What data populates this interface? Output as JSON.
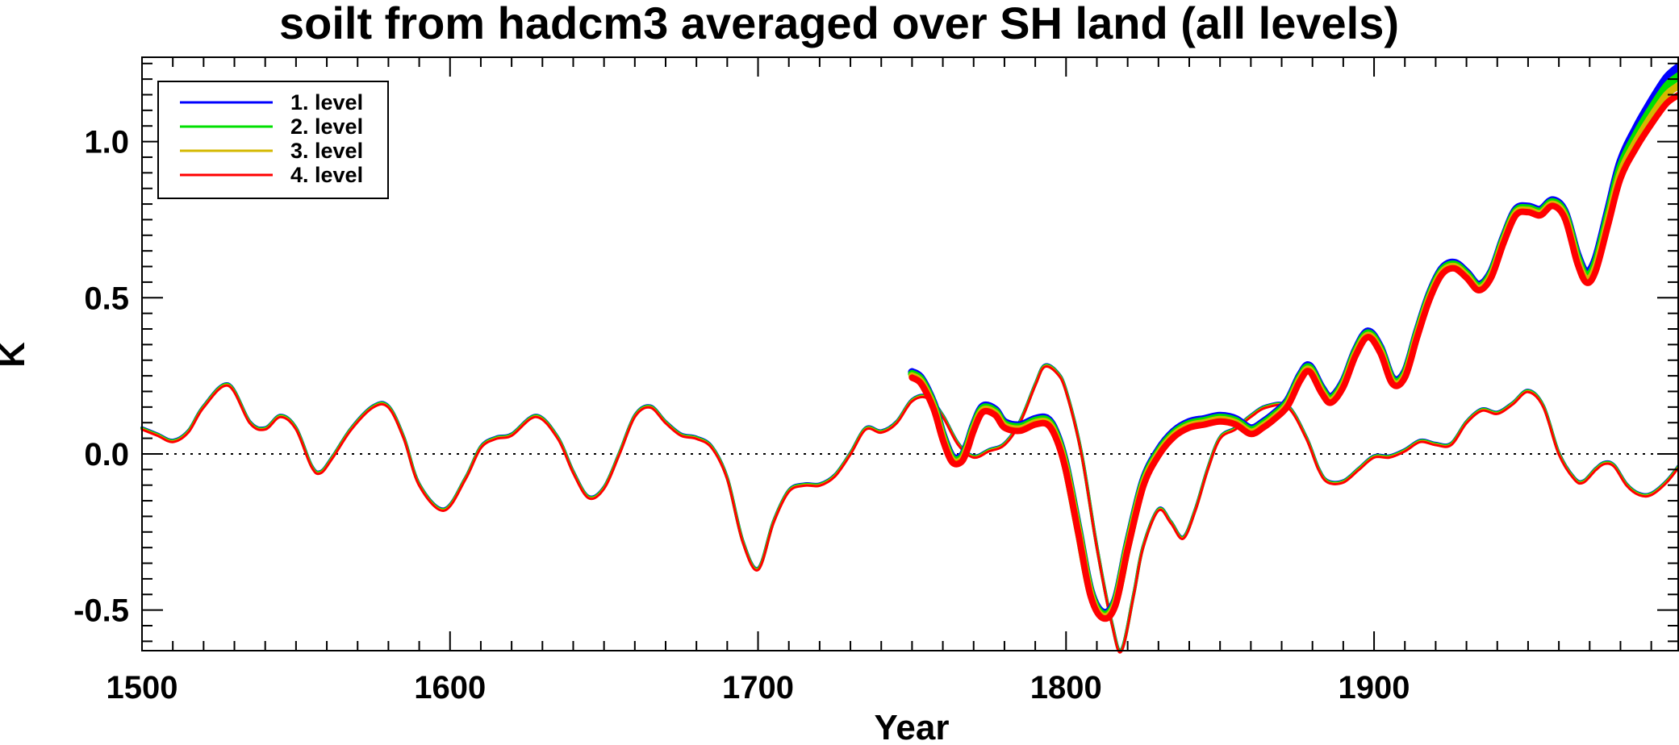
{
  "chart_data": {
    "type": "line",
    "title": "soilt from hadcm3 averaged over SH land (all levels)",
    "xlabel": "Year",
    "ylabel": "K",
    "xlim": [
      1500,
      1999
    ],
    "ylim": [
      -0.63,
      1.27
    ],
    "x_ticks": [
      1500,
      1600,
      1700,
      1800,
      1900
    ],
    "x_tick_labels": [
      "1500",
      "1600",
      "1700",
      "1800",
      "1900"
    ],
    "y_ticks": [
      -0.5,
      0.0,
      0.5,
      1.0
    ],
    "y_tick_labels": [
      "-0.5",
      "0.0",
      "0.5",
      "1.0"
    ],
    "zero_line": "dotted",
    "legend_position": "top-left",
    "series": [
      {
        "name": "1. level",
        "color": "#0000ff"
      },
      {
        "name": "2. level",
        "color": "#00e000"
      },
      {
        "name": "3. level",
        "color": "#d4b800"
      },
      {
        "name": "4. level",
        "color": "#ff0000"
      }
    ],
    "thin_curve": {
      "x": [
        1500,
        1505,
        1510,
        1515,
        1520,
        1528,
        1535,
        1540,
        1545,
        1550,
        1555,
        1558,
        1562,
        1568,
        1575,
        1580,
        1585,
        1590,
        1598,
        1605,
        1610,
        1615,
        1620,
        1628,
        1635,
        1640,
        1645,
        1650,
        1655,
        1660,
        1665,
        1670,
        1675,
        1680,
        1685,
        1690,
        1695,
        1700,
        1705,
        1710,
        1715,
        1720,
        1725,
        1730,
        1735,
        1740,
        1745,
        1750,
        1755,
        1760,
        1765,
        1770,
        1775,
        1780,
        1785,
        1790,
        1793,
        1797,
        1800,
        1805,
        1810,
        1815,
        1818,
        1822,
        1825,
        1830,
        1834,
        1838,
        1842,
        1846,
        1850,
        1855,
        1860,
        1865,
        1872,
        1878,
        1882,
        1885,
        1890,
        1895,
        1900,
        1905,
        1910,
        1915,
        1920,
        1925,
        1930,
        1935,
        1940,
        1945,
        1950,
        1955,
        1960,
        1965,
        1968,
        1972,
        1975,
        1978,
        1982,
        1986,
        1990,
        1995,
        1999
      ],
      "y": [
        0.08,
        0.06,
        0.04,
        0.07,
        0.15,
        0.22,
        0.1,
        0.08,
        0.12,
        0.08,
        -0.04,
        -0.06,
        -0.01,
        0.08,
        0.15,
        0.15,
        0.05,
        -0.1,
        -0.18,
        -0.08,
        0.02,
        0.05,
        0.06,
        0.12,
        0.05,
        -0.06,
        -0.14,
        -0.11,
        0.0,
        0.12,
        0.15,
        0.1,
        0.06,
        0.05,
        0.02,
        -0.08,
        -0.28,
        -0.37,
        -0.22,
        -0.12,
        -0.1,
        -0.1,
        -0.07,
        0.0,
        0.08,
        0.07,
        0.1,
        0.17,
        0.18,
        0.12,
        0.03,
        -0.01,
        0.01,
        0.03,
        0.1,
        0.22,
        0.28,
        0.26,
        0.2,
        0.0,
        -0.3,
        -0.55,
        -0.63,
        -0.45,
        -0.3,
        -0.18,
        -0.22,
        -0.27,
        -0.18,
        -0.05,
        0.05,
        0.08,
        0.12,
        0.15,
        0.15,
        0.05,
        -0.05,
        -0.09,
        -0.09,
        -0.05,
        -0.01,
        -0.01,
        0.01,
        0.04,
        0.03,
        0.03,
        0.1,
        0.14,
        0.13,
        0.16,
        0.2,
        0.15,
        0.0,
        -0.08,
        -0.09,
        -0.05,
        -0.03,
        -0.04,
        -0.1,
        -0.13,
        -0.13,
        -0.09,
        -0.04
      ]
    },
    "thick_curve": {
      "x": [
        1750,
        1753,
        1757,
        1760,
        1763,
        1766,
        1768,
        1770,
        1773,
        1777,
        1780,
        1785,
        1790,
        1794,
        1797,
        1800,
        1804,
        1808,
        1812,
        1816,
        1820,
        1825,
        1830,
        1835,
        1840,
        1845,
        1850,
        1855,
        1860,
        1864,
        1868,
        1872,
        1876,
        1879,
        1883,
        1886,
        1890,
        1894,
        1898,
        1902,
        1906,
        1910,
        1914,
        1918,
        1922,
        1926,
        1930,
        1934,
        1938,
        1942,
        1946,
        1950,
        1954,
        1958,
        1962,
        1966,
        1969,
        1972,
        1976,
        1980,
        1985,
        1990,
        1995,
        1999
      ],
      "y": [
        0.25,
        0.23,
        0.15,
        0.05,
        -0.02,
        -0.02,
        0.02,
        0.08,
        0.14,
        0.13,
        0.09,
        0.08,
        0.1,
        0.1,
        0.05,
        -0.05,
        -0.25,
        -0.45,
        -0.52,
        -0.48,
        -0.3,
        -0.1,
        0.0,
        0.06,
        0.09,
        0.1,
        0.11,
        0.1,
        0.07,
        0.09,
        0.12,
        0.16,
        0.24,
        0.27,
        0.2,
        0.17,
        0.22,
        0.32,
        0.38,
        0.33,
        0.23,
        0.25,
        0.38,
        0.5,
        0.58,
        0.6,
        0.57,
        0.53,
        0.57,
        0.68,
        0.77,
        0.78,
        0.77,
        0.8,
        0.76,
        0.62,
        0.56,
        0.6,
        0.75,
        0.9,
        1.0,
        1.08,
        1.15,
        1.18
      ]
    }
  }
}
